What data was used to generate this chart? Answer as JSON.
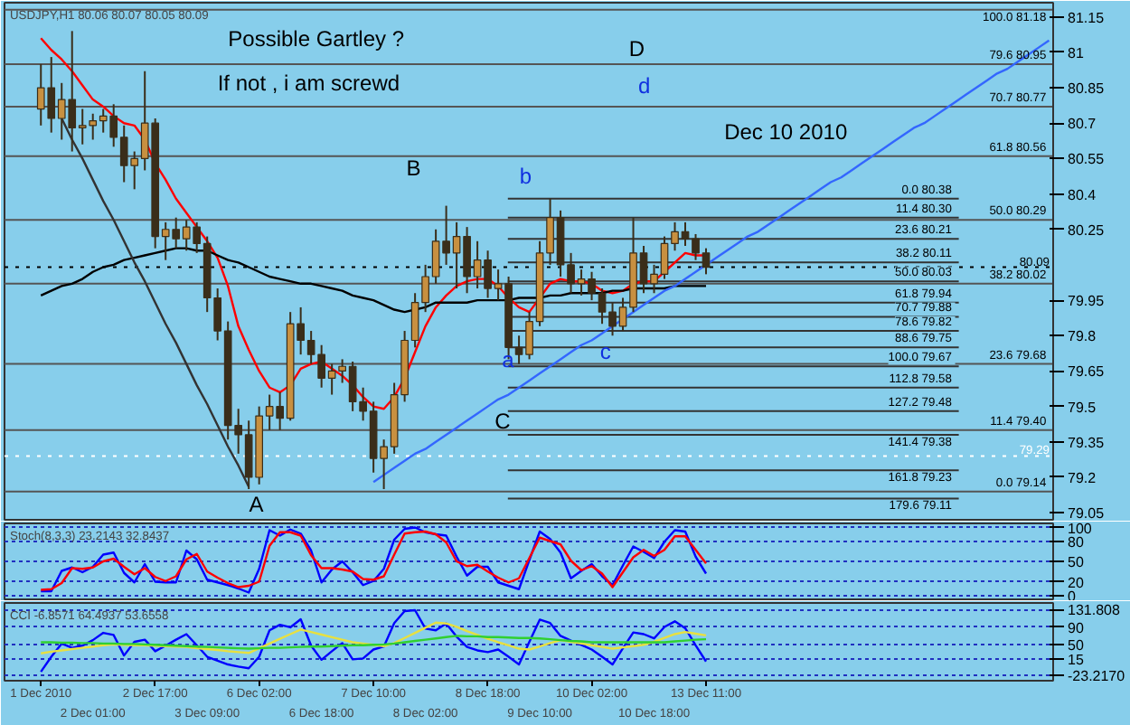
{
  "chart_data": [
    {
      "type": "candlestick",
      "title": "USDJPY,H1 80.06 80.07 80.05 80.09",
      "color": "#3a2e1a",
      "categories": [
        null,
        null,
        null,
        null,
        null,
        null,
        null,
        null,
        null,
        null,
        null,
        null,
        null,
        null,
        null,
        null,
        null,
        null,
        null,
        null,
        null,
        null,
        null,
        null,
        null,
        null,
        null,
        null,
        null,
        null,
        null,
        null,
        null,
        null,
        null,
        null,
        null,
        null,
        null,
        null,
        null,
        null,
        null,
        null,
        null,
        null,
        null,
        null,
        null,
        null,
        null,
        null,
        null,
        null,
        null,
        null,
        null,
        null,
        null,
        null,
        null,
        null,
        null,
        null,
        null,
        null,
        null,
        null,
        null,
        null,
        null,
        null,
        null,
        null,
        null,
        null,
        null,
        null,
        null,
        null,
        null,
        null,
        null,
        null,
        null,
        null,
        null,
        null,
        null,
        null,
        null,
        null,
        null,
        null,
        null,
        null,
        null,
        null
      ],
      "ohlc": [
        [
          80.76,
          80.95,
          80.69,
          80.85
        ],
        [
          80.85,
          80.98,
          80.66,
          80.72
        ],
        [
          80.72,
          80.87,
          80.63,
          80.8
        ],
        [
          80.8,
          81.09,
          80.58,
          80.68
        ],
        [
          80.68,
          80.76,
          80.61,
          80.69
        ],
        [
          80.69,
          80.74,
          80.63,
          80.71
        ],
        [
          80.71,
          80.76,
          80.66,
          80.73
        ],
        [
          80.73,
          80.78,
          80.6,
          80.64
        ],
        [
          80.64,
          80.69,
          80.45,
          80.52
        ],
        [
          80.52,
          80.58,
          80.42,
          80.55
        ],
        [
          80.55,
          80.92,
          80.5,
          80.7
        ],
        [
          80.7,
          80.72,
          80.17,
          80.22
        ],
        [
          80.22,
          80.28,
          80.12,
          80.25
        ],
        [
          80.25,
          80.3,
          80.17,
          80.21
        ],
        [
          80.21,
          80.29,
          80.16,
          80.26
        ],
        [
          80.26,
          80.28,
          80.15,
          80.19
        ],
        [
          80.19,
          80.22,
          79.9,
          79.96
        ],
        [
          79.96,
          80.0,
          79.78,
          79.82
        ],
        [
          79.82,
          79.86,
          79.36,
          79.42
        ],
        [
          79.42,
          79.49,
          79.3,
          79.38
        ],
        [
          79.38,
          79.44,
          79.15,
          79.2
        ],
        [
          79.2,
          79.5,
          79.17,
          79.46
        ],
        [
          79.46,
          79.55,
          79.4,
          79.5
        ],
        [
          79.5,
          79.56,
          79.4,
          79.45
        ],
        [
          79.45,
          79.9,
          79.44,
          79.85
        ],
        [
          79.85,
          79.92,
          79.72,
          79.78
        ],
        [
          79.78,
          79.82,
          79.68,
          79.72
        ],
        [
          79.72,
          79.76,
          79.58,
          79.62
        ],
        [
          79.62,
          79.68,
          79.55,
          79.65
        ],
        [
          79.65,
          79.7,
          79.6,
          79.67
        ],
        [
          79.67,
          79.69,
          79.48,
          79.52
        ],
        [
          79.52,
          79.58,
          79.44,
          79.48
        ],
        [
          79.48,
          79.52,
          79.22,
          79.28
        ],
        [
          79.28,
          79.36,
          79.15,
          79.33
        ],
        [
          79.33,
          79.6,
          79.3,
          79.55
        ],
        [
          79.55,
          79.82,
          79.52,
          79.78
        ],
        [
          79.78,
          79.98,
          79.75,
          79.94
        ],
        [
          79.94,
          80.1,
          79.9,
          80.05
        ],
        [
          80.05,
          80.25,
          80.02,
          80.2
        ],
        [
          80.2,
          80.35,
          80.1,
          80.15
        ],
        [
          80.15,
          80.28,
          80.0,
          80.22
        ],
        [
          80.22,
          80.26,
          79.98,
          80.05
        ],
        [
          80.05,
          80.2,
          80.0,
          80.12
        ],
        [
          80.12,
          80.16,
          79.96,
          80.0
        ],
        [
          80.0,
          80.08,
          79.95,
          80.02
        ],
        [
          80.02,
          80.05,
          79.7,
          79.75
        ],
        [
          79.75,
          79.8,
          79.68,
          79.72
        ],
        [
          79.72,
          79.9,
          79.7,
          79.86
        ],
        [
          79.86,
          80.2,
          79.84,
          80.15
        ],
        [
          80.15,
          80.38,
          80.1,
          80.3
        ],
        [
          80.3,
          80.33,
          80.05,
          80.1
        ],
        [
          80.1,
          80.15,
          79.98,
          80.02
        ],
        [
          80.02,
          80.08,
          79.97,
          80.04
        ],
        [
          80.04,
          80.07,
          79.95,
          79.98
        ],
        [
          79.98,
          80.0,
          79.85,
          79.9
        ],
        [
          79.9,
          79.94,
          79.8,
          79.84
        ],
        [
          79.84,
          79.96,
          79.82,
          79.92
        ],
        [
          79.92,
          80.3,
          79.9,
          80.15
        ],
        [
          80.15,
          80.18,
          79.98,
          80.02
        ],
        [
          80.02,
          80.1,
          79.98,
          80.06
        ],
        [
          80.06,
          80.22,
          80.04,
          80.19
        ],
        [
          80.19,
          80.28,
          80.16,
          80.24
        ],
        [
          80.24,
          80.28,
          80.18,
          80.21
        ],
        [
          80.21,
          80.23,
          80.12,
          80.15
        ],
        [
          80.15,
          80.17,
          80.06,
          80.09
        ],
        null,
        null,
        null,
        null,
        null,
        null,
        null,
        null,
        null,
        null,
        null,
        null,
        null,
        null,
        null,
        null,
        null,
        null,
        null,
        null,
        null,
        null,
        null,
        null,
        null,
        null,
        null,
        null,
        null,
        null,
        null,
        null,
        null
      ],
      "series": [
        {
          "type": "line",
          "color": "#ff0000",
          "values": [
            81.06,
            81.01,
            80.97,
            80.92,
            80.86,
            80.8,
            80.77,
            80.73,
            80.7,
            80.69,
            80.63,
            80.53,
            80.46,
            80.38,
            80.32,
            80.26,
            80.2,
            80.13,
            80.01,
            79.84,
            79.74,
            79.65,
            79.58,
            79.56,
            79.59,
            79.66,
            79.68,
            79.69,
            79.66,
            79.63,
            79.59,
            79.54,
            79.5,
            79.49,
            79.54,
            79.62,
            79.73,
            79.84,
            79.92,
            79.97,
            80.01,
            80.03,
            80.04,
            80.04,
            80.01,
            79.96,
            79.92,
            79.9,
            79.96,
            80.02,
            80.04,
            80.03,
            80.03,
            80.02,
            79.99,
            79.98,
            79.99,
            80.02,
            80.03,
            80.03,
            80.07,
            80.11,
            80.15,
            80.14,
            80.14,
            null,
            null,
            null,
            null,
            null,
            null,
            null,
            null,
            null,
            null,
            null,
            null,
            null,
            null,
            null,
            null,
            null,
            null,
            null,
            null,
            null,
            null,
            null,
            null,
            null,
            null,
            null,
            null,
            null,
            null,
            null,
            null,
            null
          ]
        },
        {
          "type": "line",
          "color": "#000000",
          "values": [
            79.97,
            79.99,
            80.01,
            80.02,
            80.04,
            80.07,
            80.09,
            80.1,
            80.12,
            80.13,
            80.14,
            80.15,
            80.16,
            80.17,
            80.17,
            80.16,
            80.16,
            80.14,
            80.12,
            80.11,
            80.09,
            80.07,
            80.05,
            80.04,
            80.03,
            80.02,
            80.02,
            80.01,
            80.0,
            79.99,
            79.97,
            79.96,
            79.95,
            79.93,
            79.91,
            79.9,
            79.91,
            79.92,
            79.94,
            79.94,
            79.94,
            79.94,
            79.95,
            79.95,
            79.95,
            79.95,
            79.96,
            79.96,
            79.96,
            79.97,
            79.97,
            79.98,
            79.98,
            79.98,
            79.98,
            79.99,
            79.99,
            80.0,
            80.0,
            80.0,
            80.0,
            80.01,
            80.01,
            80.01,
            80.01,
            null,
            null,
            null,
            null,
            null,
            null,
            null,
            null,
            null,
            null,
            null,
            null,
            null,
            null,
            null,
            null,
            null,
            null,
            null,
            null,
            null,
            null,
            null,
            null,
            null,
            null,
            null,
            null,
            null,
            null,
            null,
            null,
            null
          ]
        },
        {
          "type": "line",
          "color": "#333333",
          "values": [
            null,
            null,
            80.72,
            80.63,
            80.55,
            80.46,
            80.37,
            80.29,
            80.2,
            80.11,
            80.03,
            79.94,
            79.85,
            79.77,
            79.68,
            79.59,
            79.51,
            79.42,
            79.33,
            79.25,
            79.16,
            null,
            null,
            null,
            null,
            null,
            null,
            null,
            null,
            null,
            null,
            null,
            null,
            null,
            null,
            null,
            null,
            null,
            null,
            null,
            null,
            null,
            null,
            null,
            null,
            null,
            null,
            null,
            null,
            null,
            null,
            null,
            null,
            null,
            null,
            null,
            null,
            null,
            null,
            null,
            null,
            null,
            null,
            null,
            null,
            null,
            null,
            null,
            null,
            null,
            null,
            null,
            null,
            null,
            null,
            null,
            null,
            null,
            null,
            null,
            null,
            null,
            null,
            null,
            null,
            null,
            null,
            null,
            null,
            null,
            null,
            null,
            null,
            null,
            null,
            null,
            null,
            null
          ]
        },
        {
          "type": "line",
          "color": "#3366ff",
          "values": [
            null,
            null,
            null,
            null,
            null,
            null,
            null,
            null,
            null,
            null,
            null,
            null,
            null,
            null,
            null,
            null,
            null,
            null,
            null,
            null,
            null,
            null,
            null,
            null,
            null,
            null,
            null,
            null,
            null,
            null,
            null,
            null,
            79.18,
            79.21,
            79.24,
            79.27,
            79.3,
            79.32,
            79.35,
            79.38,
            79.41,
            79.44,
            79.47,
            79.5,
            79.53,
            79.55,
            79.58,
            79.61,
            79.64,
            79.67,
            79.7,
            79.73,
            79.76,
            79.78,
            79.81,
            79.84,
            79.87,
            79.9,
            79.93,
            79.96,
            79.99,
            80.01,
            80.04,
            80.07,
            80.1,
            80.13,
            80.16,
            80.19,
            80.22,
            80.24,
            80.27,
            80.3,
            80.33,
            80.36,
            80.39,
            80.42,
            80.45,
            80.47,
            80.5,
            80.53,
            80.56,
            80.59,
            80.62,
            80.65,
            80.68,
            80.7,
            80.73,
            80.76,
            80.79,
            80.82,
            80.85,
            80.88,
            80.91,
            80.93,
            80.96,
            80.99,
            81.02,
            81.05
          ]
        }
      ],
      "ylim": [
        79.02,
        81.21
      ],
      "yticks": [
        79.05,
        79.2,
        79.35,
        79.5,
        79.65,
        79.8,
        79.95,
        80.25,
        80.4,
        80.55,
        80.7,
        80.85,
        81.0,
        81.15
      ],
      "tick_labels": "y",
      "ref_lines": [
        {
          "axis": "y",
          "value": 80.38,
          "label": "0.0  80.38",
          "color": "#333333"
        },
        {
          "axis": "y",
          "value": 80.3,
          "label": "11.4  80.30",
          "color": "#333333"
        },
        {
          "axis": "y",
          "value": 80.21,
          "label": "23.6  80.21",
          "color": "#333333"
        },
        {
          "axis": "y",
          "value": 80.11,
          "label": "38.2  80.11",
          "color": "#333333"
        },
        {
          "axis": "y",
          "value": 80.03,
          "label": "50.0  80.03",
          "color": "#333333"
        },
        {
          "axis": "y",
          "value": 79.94,
          "label": "61.8  79.94",
          "color": "#333333"
        },
        {
          "axis": "y",
          "value": 79.88,
          "label": "70.7  79.88",
          "color": "#333333"
        },
        {
          "axis": "y",
          "value": 79.82,
          "label": "78.6  79.82",
          "color": "#333333"
        },
        {
          "axis": "y",
          "value": 79.75,
          "label": "88.6  79.75",
          "color": "#333333"
        },
        {
          "axis": "y",
          "value": 79.67,
          "label": "100.0  79.67",
          "color": "#333333"
        },
        {
          "axis": "y",
          "value": 79.58,
          "label": "112.8  79.58",
          "color": "#333333"
        },
        {
          "axis": "y",
          "value": 79.48,
          "label": "127.2  79.48",
          "color": "#333333"
        },
        {
          "axis": "y",
          "value": 79.38,
          "label": "141.4  79.38",
          "color": "#333333"
        },
        {
          "axis": "y",
          "value": 79.23,
          "label": "161.8  79.23",
          "color": "#333333"
        },
        {
          "axis": "y",
          "value": 79.11,
          "label": "179.6  79.11",
          "color": "#333333"
        },
        {
          "axis": "y",
          "value": 81.18,
          "label": "100.0  81.18",
          "color": "#555555"
        },
        {
          "axis": "y",
          "value": 80.95,
          "label": "79.6  80.95",
          "color": "#555555"
        },
        {
          "axis": "y",
          "value": 80.77,
          "label": "70.7  80.77",
          "color": "#555555"
        },
        {
          "axis": "y",
          "value": 80.56,
          "label": "61.8  80.56",
          "color": "#555555"
        },
        {
          "axis": "y",
          "value": 80.29,
          "label": "50.0  80.29",
          "color": "#555555"
        },
        {
          "axis": "y",
          "value": 80.02,
          "label": "38.2  80.02",
          "color": "#555555"
        },
        {
          "axis": "y",
          "value": 79.68,
          "label": "23.6  79.68",
          "color": "#555555"
        },
        {
          "axis": "y",
          "value": 79.4,
          "label": "11.4  79.40",
          "color": "#555555"
        },
        {
          "axis": "y",
          "value": 79.14,
          "label": "0.0  79.14",
          "color": "#555555"
        },
        {
          "axis": "y",
          "value": 80.09,
          "label": "80.09",
          "color": "#000000",
          "line_style": "dotted"
        },
        {
          "axis": "y",
          "value": 79.29,
          "label": "79.29",
          "color": "#ffffff",
          "line_style": "dotted"
        }
      ],
      "annotations": [
        "Possible Gartley  ?",
        "If not , i am screwd",
        "Dec 10 2010",
        "A",
        "B",
        "C",
        "D",
        "a",
        "b",
        "c",
        "d"
      ]
    },
    {
      "type": "line",
      "title": "Stoch(8,3,3) 23.2143 32.8437",
      "grid": "y",
      "line_style": "solid",
      "categories": [
        null,
        null,
        null,
        null,
        null,
        null,
        null,
        null,
        null,
        null,
        null,
        null,
        null,
        null,
        null,
        null,
        null,
        null,
        null,
        null,
        null,
        null,
        null,
        null,
        null,
        null,
        null,
        null,
        null,
        null,
        null,
        null,
        null,
        null,
        null,
        null,
        null,
        null,
        null,
        null,
        null,
        null,
        null,
        null,
        null,
        null,
        null,
        null,
        null,
        null,
        null,
        null,
        null,
        null,
        null,
        null,
        null,
        null,
        null,
        null,
        null,
        null,
        null,
        null,
        null,
        null,
        null,
        null,
        null,
        null,
        null,
        null,
        null,
        null,
        null,
        null,
        null,
        null,
        null,
        null,
        null,
        null,
        null,
        null,
        null,
        null,
        null,
        null,
        null,
        null,
        null,
        null,
        null,
        null,
        null,
        null,
        null,
        null
      ],
      "series": [
        {
          "color": "#0000ff",
          "values": [
            6,
            6,
            36,
            41,
            34,
            42,
            60,
            63,
            33,
            19,
            46,
            20,
            19,
            19,
            66,
            53,
            23,
            19,
            15,
            10,
            4,
            39,
            96,
            88,
            97,
            91,
            66,
            19,
            38,
            50,
            34,
            15,
            21,
            39,
            82,
            98,
            100,
            93,
            90,
            88,
            57,
            29,
            42,
            42,
            19,
            14,
            9,
            52,
            94,
            83,
            63,
            25,
            36,
            46,
            28,
            15,
            44,
            72,
            64,
            55,
            79,
            96,
            94,
            57,
            32,
            null,
            null,
            null,
            null,
            null,
            null,
            null,
            null,
            null,
            null,
            null,
            null,
            null,
            null,
            null,
            null,
            null,
            null,
            null,
            null,
            null,
            null,
            null,
            null,
            null,
            null,
            null,
            null,
            null,
            null,
            null,
            null,
            null
          ]
        },
        {
          "color": "#ff0000",
          "values": [
            8,
            9,
            18,
            40,
            39,
            41,
            50,
            54,
            42,
            31,
            40,
            27,
            21,
            28,
            53,
            61,
            35,
            26,
            18,
            12,
            14,
            20,
            73,
            93,
            93,
            88,
            59,
            40,
            40,
            38,
            35,
            24,
            23,
            28,
            60,
            91,
            93,
            94,
            90,
            78,
            50,
            43,
            45,
            35,
            26,
            19,
            25,
            55,
            85,
            80,
            75,
            51,
            37,
            43,
            32,
            12,
            34,
            56,
            67,
            58,
            67,
            87,
            87,
            67,
            47,
            null,
            null,
            null,
            null,
            null,
            null,
            null,
            null,
            null,
            null,
            null,
            null,
            null,
            null,
            null,
            null,
            null,
            null,
            null,
            null,
            null,
            null,
            null,
            null,
            null,
            null,
            null,
            null,
            null,
            null,
            null,
            null,
            null
          ]
        }
      ],
      "ylim": [
        -6,
        106
      ],
      "yticks": [
        0,
        20,
        50,
        80,
        100
      ],
      "tick_labels": "y"
    },
    {
      "type": "line",
      "title": "CCI -6.8571 64.4937 53.6558",
      "grid": "y",
      "line_style": "solid",
      "categories": [
        "1 Dec 2010",
        null,
        null,
        null,
        null,
        "2 Dec 01:00",
        null,
        null,
        null,
        null,
        null,
        "2 Dec 17:00",
        null,
        null,
        null,
        null,
        "3 Dec 09:00",
        null,
        null,
        null,
        null,
        "6 Dec 02:00",
        null,
        null,
        null,
        null,
        null,
        "6 Dec 18:00",
        null,
        null,
        null,
        null,
        "7 Dec 10:00",
        null,
        null,
        null,
        null,
        "8 Dec 02:00",
        null,
        null,
        null,
        null,
        null,
        "8 Dec 18:00",
        null,
        null,
        null,
        null,
        "9 Dec 10:00",
        null,
        null,
        null,
        null,
        "10 Dec 02:00",
        null,
        null,
        null,
        null,
        null,
        "10 Dec 18:00",
        null,
        null,
        null,
        null,
        "13 Dec 11:00",
        null,
        null,
        null,
        null,
        null,
        null,
        null,
        null,
        null,
        null,
        null,
        null,
        null,
        null,
        null,
        null,
        null,
        null,
        null,
        null,
        null,
        null,
        null,
        null,
        null,
        null,
        null,
        null,
        null,
        null,
        null,
        null,
        null
      ],
      "series": [
        {
          "color": "#0000ff",
          "values": [
            -14,
            21,
            52,
            42,
            47,
            60,
            77,
            72,
            24,
            56,
            61,
            34,
            47,
            61,
            74,
            48,
            21,
            12,
            3,
            -2,
            -6,
            21,
            83,
            96,
            90,
            109,
            47,
            14,
            34,
            53,
            15,
            17,
            38,
            45,
            100,
            128,
            130,
            87,
            83,
            99,
            68,
            44,
            36,
            32,
            38,
            21,
            3,
            56,
            108,
            100,
            70,
            59,
            49,
            38,
            21,
            3,
            41,
            78,
            74,
            64,
            91,
            104,
            88,
            48,
            10,
            null,
            null,
            null,
            null,
            null,
            null,
            null,
            null,
            null,
            null,
            null,
            null,
            null,
            null,
            null,
            null,
            null,
            null,
            null,
            null,
            null,
            null,
            null,
            null,
            null,
            null,
            null,
            null,
            null,
            null,
            null,
            null,
            null
          ]
        },
        {
          "color": "#e8e040",
          "values": [
            29,
            33,
            36,
            39,
            42,
            45,
            48,
            50,
            49,
            48,
            48,
            47,
            46,
            45,
            44,
            41,
            39,
            37,
            34,
            32,
            30,
            41,
            52,
            63,
            74,
            85,
            79,
            73,
            67,
            61,
            55,
            52,
            49,
            46,
            53,
            65,
            77,
            89,
            101,
            99,
            91,
            81,
            72,
            63,
            55,
            48,
            40,
            38,
            45,
            53,
            60,
            56,
            52,
            48,
            44,
            40,
            43,
            46,
            49,
            56,
            65,
            74,
            79,
            75,
            71,
            null,
            null,
            null,
            null,
            null,
            null,
            null,
            null,
            null,
            null,
            null,
            null,
            null,
            null,
            null,
            null,
            null,
            null,
            null,
            null,
            null,
            null,
            null,
            null,
            null,
            null,
            null,
            null,
            null,
            null,
            null,
            null,
            null
          ]
        },
        {
          "color": "#30d030",
          "values": [
            55,
            55,
            54,
            54,
            53,
            53,
            52,
            52,
            51,
            51,
            50,
            49,
            48,
            47,
            46,
            45,
            44,
            43,
            42,
            41,
            40,
            41,
            42,
            42,
            43,
            44,
            45,
            45,
            46,
            47,
            48,
            48,
            49,
            50,
            52,
            55,
            58,
            61,
            64,
            67,
            70,
            69,
            69,
            67,
            67,
            66,
            65,
            65,
            64,
            62,
            60,
            58,
            57,
            55,
            55,
            55,
            55,
            55,
            55,
            55,
            55,
            57,
            59,
            61,
            62,
            null,
            null,
            null,
            null,
            null,
            null,
            null,
            null,
            null,
            null,
            null,
            null,
            null,
            null,
            null,
            null,
            null,
            null,
            null,
            null,
            null,
            null,
            null,
            null,
            null,
            null,
            null,
            null,
            null,
            null,
            null,
            null,
            null
          ]
        }
      ],
      "ylim": [
        -35,
        147
      ],
      "yticks": [
        {
          "value": -23.217,
          "label": "-23.2170"
        },
        15,
        50,
        90,
        {
          "value": 131.808,
          "label": "131.808"
        }
      ]
    }
  ]
}
